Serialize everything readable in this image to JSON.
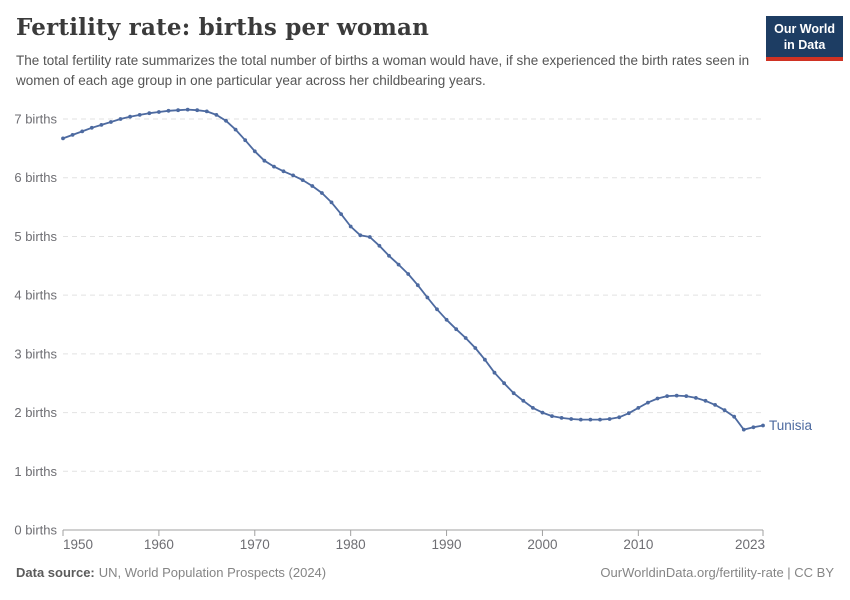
{
  "header": {
    "logo": {
      "line1": "Our World",
      "line2": "in Data",
      "bg_color": "#1d3d63",
      "bar_color": "#cf3223"
    }
  },
  "footer": {
    "data_source_label": "Data source:",
    "data_source_value": "UN, World Population Prospects (2024)",
    "link": "OurWorldinData.org/fertility-rate | CC BY"
  },
  "chart_data": {
    "type": "line",
    "title": "Fertility rate: births per woman",
    "subtitle": "The total fertility rate summarizes the total number of births a woman would have, if she experienced the birth rates seen in women of each age group in one particular year across her childbearing years.",
    "xlabel": "",
    "ylabel": "births",
    "xlim": [
      1950,
      2023
    ],
    "ylim": [
      0,
      7.4
    ],
    "grid": "dashed horizontal",
    "legend_position": "end-of-line label",
    "x_ticks": [
      {
        "value": 1950,
        "label": "1950"
      },
      {
        "value": 1960,
        "label": "1960"
      },
      {
        "value": 1970,
        "label": "1970"
      },
      {
        "value": 1980,
        "label": "1980"
      },
      {
        "value": 1990,
        "label": "1990"
      },
      {
        "value": 2000,
        "label": "2000"
      },
      {
        "value": 2010,
        "label": "2010"
      },
      {
        "value": 2023,
        "label": "2023"
      }
    ],
    "y_ticks": [
      {
        "value": 0,
        "label": "0 births"
      },
      {
        "value": 1,
        "label": "1 births"
      },
      {
        "value": 2,
        "label": "2 births"
      },
      {
        "value": 3,
        "label": "3 births"
      },
      {
        "value": 4,
        "label": "4 births"
      },
      {
        "value": 5,
        "label": "5 births"
      },
      {
        "value": 6,
        "label": "6 births"
      },
      {
        "value": 7,
        "label": "7 births"
      }
    ],
    "series": [
      {
        "name": "Tunisia",
        "color": "#4d6aa0",
        "x": [
          1950,
          1951,
          1952,
          1953,
          1954,
          1955,
          1956,
          1957,
          1958,
          1959,
          1960,
          1961,
          1962,
          1963,
          1964,
          1965,
          1966,
          1967,
          1968,
          1969,
          1970,
          1971,
          1972,
          1973,
          1974,
          1975,
          1976,
          1977,
          1978,
          1979,
          1980,
          1981,
          1982,
          1983,
          1984,
          1985,
          1986,
          1987,
          1988,
          1989,
          1990,
          1991,
          1992,
          1993,
          1994,
          1995,
          1996,
          1997,
          1998,
          1999,
          2000,
          2001,
          2002,
          2003,
          2004,
          2005,
          2006,
          2007,
          2008,
          2009,
          2010,
          2011,
          2012,
          2013,
          2014,
          2015,
          2016,
          2017,
          2018,
          2019,
          2020,
          2021,
          2022,
          2023
        ],
        "values": [
          6.67,
          6.73,
          6.79,
          6.85,
          6.9,
          6.95,
          7.0,
          7.04,
          7.07,
          7.1,
          7.12,
          7.14,
          7.15,
          7.16,
          7.15,
          7.13,
          7.07,
          6.97,
          6.82,
          6.64,
          6.45,
          6.29,
          6.19,
          6.11,
          6.04,
          5.96,
          5.86,
          5.74,
          5.58,
          5.38,
          5.17,
          5.02,
          4.99,
          4.84,
          4.67,
          4.52,
          4.36,
          4.17,
          3.96,
          3.76,
          3.58,
          3.42,
          3.27,
          3.1,
          2.9,
          2.68,
          2.5,
          2.33,
          2.2,
          2.08,
          2.0,
          1.94,
          1.91,
          1.89,
          1.88,
          1.88,
          1.88,
          1.89,
          1.92,
          1.99,
          2.08,
          2.17,
          2.24,
          2.28,
          2.29,
          2.28,
          2.25,
          2.2,
          2.13,
          2.04,
          1.93,
          1.71,
          1.75,
          1.78
        ]
      }
    ],
    "style": {
      "grid_color": "#e2e2e2",
      "axis_color": "#a1a1a1",
      "tick_label_color": "#6e6e73"
    }
  }
}
